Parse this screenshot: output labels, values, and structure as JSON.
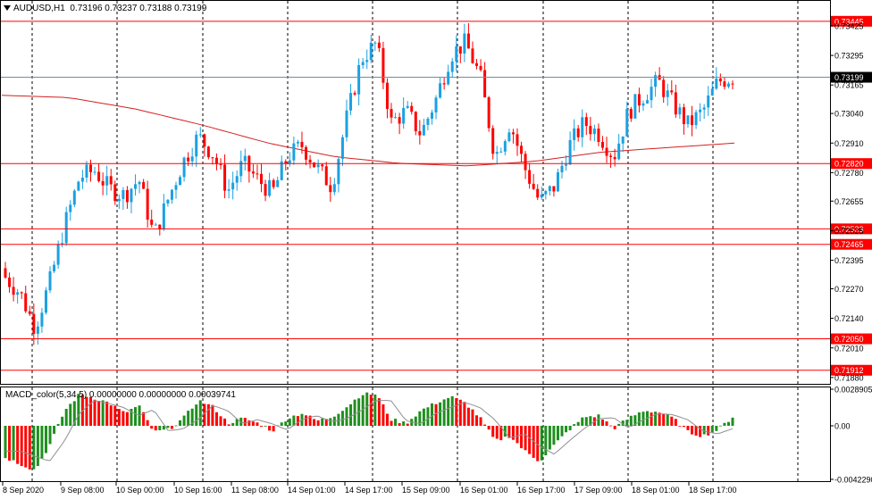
{
  "header": {
    "symbol": "AUDUSD,H1",
    "ohlc": "0.73196 0.73237 0.73188 0.73199"
  },
  "indicator": {
    "label": "MACD_color(5,34,5) 0.00000000 0.00000000 0.00039741"
  },
  "colors": {
    "bull": "#1ba1e2",
    "bear": "#ff0000",
    "ma": "#d42020",
    "level": "#ff0000",
    "current": "#6e8fa0",
    "hist_up": "#1e8f1e",
    "hist_down": "#ff0000",
    "signal": "#909090"
  },
  "chart_data": [
    {
      "type": "candlestick",
      "title": "AUDUSD,H1",
      "ylim": [
        0.7186,
        0.7346
      ],
      "y_ticks": [
        "0.73425",
        "0.73295",
        "0.73165",
        "0.73040",
        "0.72910",
        "0.72780",
        "0.72655",
        "0.72525",
        "0.72395",
        "0.72270",
        "0.72140",
        "0.72010",
        "0.71880"
      ],
      "x_labels": [
        "8 Sep 2020",
        "9 Sep 08:00",
        "10 Sep 00:00",
        "10 Sep 16:00",
        "11 Sep 08:00",
        "14 Sep 01:00",
        "14 Sep 17:00",
        "15 Sep 09:00",
        "16 Sep 01:00",
        "16 Sep 17:00",
        "17 Sep 09:00",
        "18 Sep 01:00",
        "18 Sep 17:00"
      ],
      "grid": "vertical-dashed",
      "series": [
        {
          "type": "ma",
          "values": [
            0.7312,
            0.7311,
            0.7306,
            0.7299,
            0.7291,
            0.7285,
            0.7282,
            0.7281,
            0.7283,
            0.7287,
            0.7289,
            0.7291
          ]
        },
        {
          "type": "ohlc",
          "close": [
            0.7232,
            0.7225,
            0.721,
            0.723,
            0.7255,
            0.7276,
            0.7279,
            0.7271,
            0.7268,
            0.7275,
            0.725,
            0.7267,
            0.7283,
            0.7294,
            0.7286,
            0.727,
            0.7282,
            0.7275,
            0.7269,
            0.7285,
            0.729,
            0.728,
            0.7272,
            0.7302,
            0.7328,
            0.7335,
            0.73,
            0.7305,
            0.7295,
            0.731,
            0.733,
            0.7335,
            0.732,
            0.7285,
            0.73,
            0.728,
            0.7265,
            0.7272,
            0.729,
            0.73,
            0.7295,
            0.7285,
            0.7305,
            0.7312,
            0.7318,
            0.7308,
            0.7299,
            0.7305,
            0.7318,
            0.732
          ]
        }
      ],
      "price_levels": [
        {
          "label": "0.73445",
          "value": 0.73445
        },
        {
          "label": "0.72820",
          "value": 0.7282
        },
        {
          "label": "0.72533",
          "value": 0.72533
        },
        {
          "label": "0.72465",
          "value": 0.72465
        },
        {
          "label": "0.72050",
          "value": 0.7205
        },
        {
          "label": "0.71912",
          "value": 0.71912
        }
      ],
      "current_price": {
        "label": "0.73199",
        "value": 0.73199
      }
    },
    {
      "type": "bar",
      "title": "MACD_color(5,34,5)",
      "ylim": [
        -0.004229,
        0.00289
      ],
      "y_ticks": [
        "0.00289051",
        "0.00",
        "-0.00422907"
      ],
      "values": [
        -0.0025,
        -0.003,
        -0.0035,
        -0.0015,
        0.0012,
        0.0025,
        0.0022,
        0.0018,
        0.001,
        0.0016,
        -0.0005,
        -0.0003,
        0.0006,
        0.002,
        0.0015,
        0.0002,
        0.0006,
        0.0002,
        -0.0004,
        0.0006,
        0.001,
        0.0004,
        0.0007,
        0.0015,
        0.0025,
        0.0025,
        0.0005,
        0.0002,
        0.0012,
        0.0018,
        0.0023,
        0.0018,
        0.0006,
        -0.0012,
        -0.0008,
        -0.002,
        -0.0028,
        -0.0015,
        -0.0003,
        0.0007,
        0.0008,
        -0.0002,
        0.0006,
        0.0012,
        0.0011,
        0.0006,
        -0.0005,
        -0.0008,
        -0.0003,
        0.0007
      ]
    }
  ]
}
